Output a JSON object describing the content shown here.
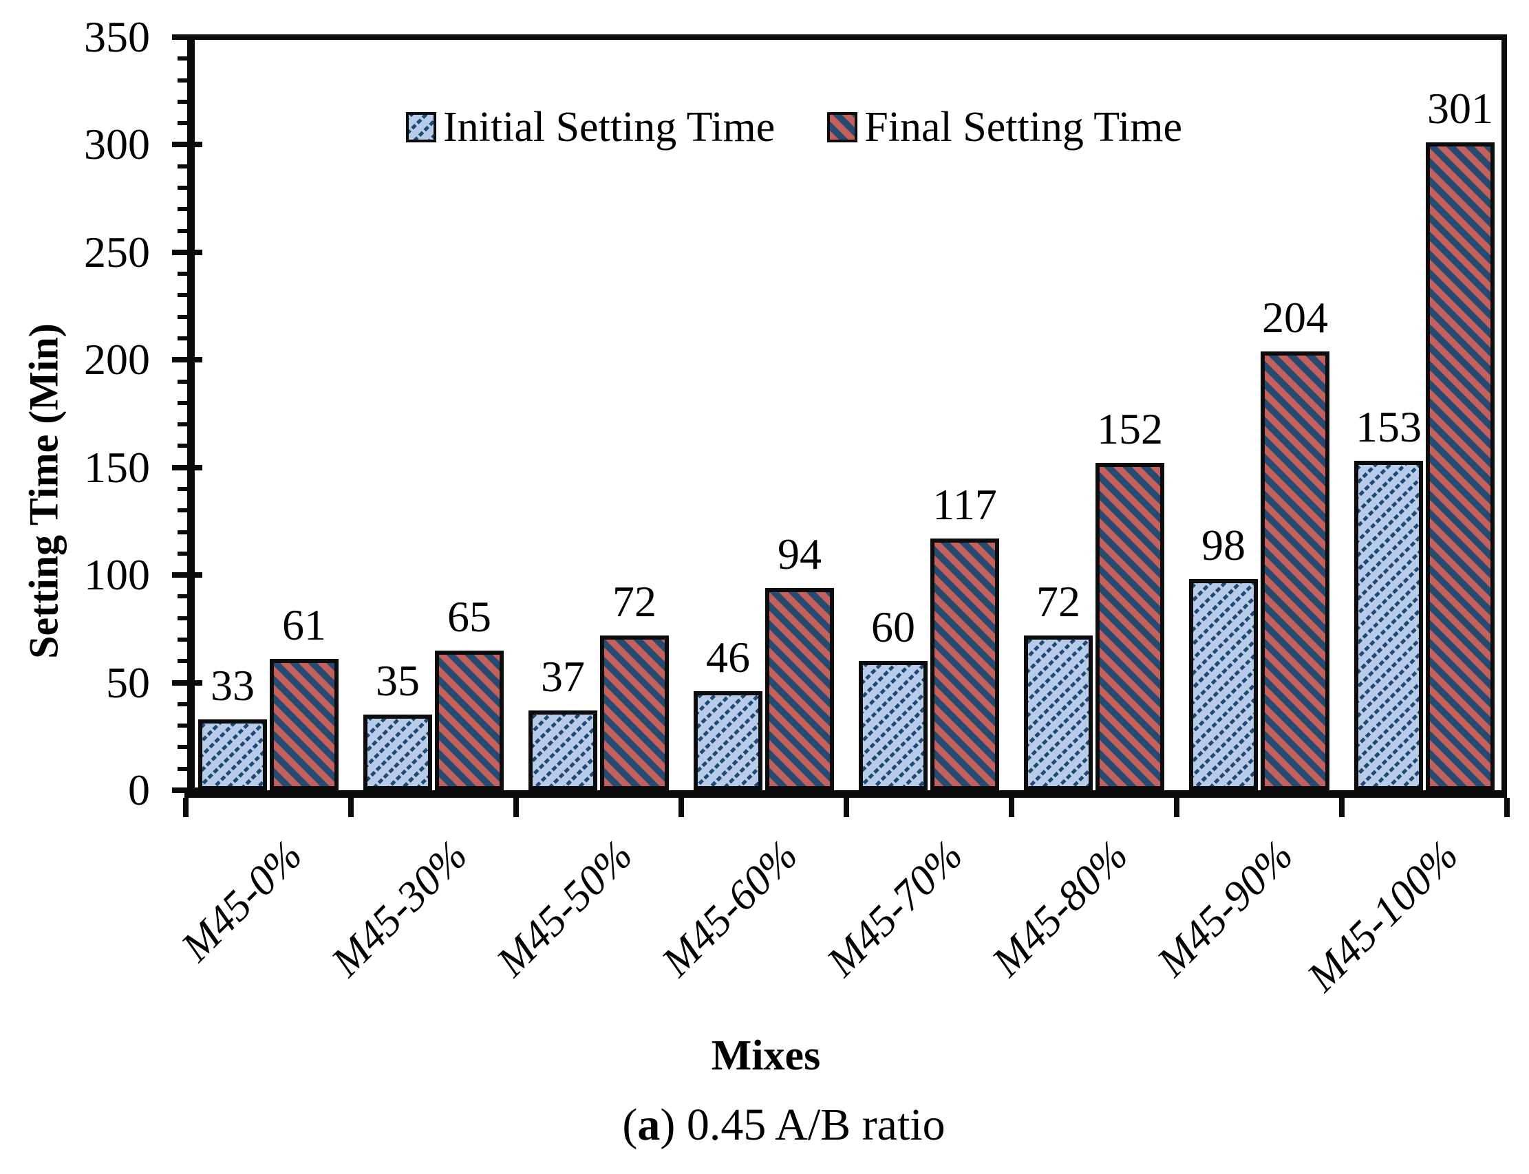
{
  "figure": {
    "y_axis_title": "Setting Time (Min)",
    "x_axis_title": "Mixes",
    "caption": {
      "prefix": "(",
      "letter": "a",
      "suffix": ") 0.45 A/B ratio"
    }
  },
  "legend": {
    "initial_label": "Initial Setting Time",
    "final_label": "Final Setting Time"
  },
  "colors": {
    "initial_fill": "#b8cbe8",
    "initial_hatch": "#1f4a73",
    "final_fill": "#264a70",
    "final_hatch": "#c4615c",
    "axis": "#0b0b0b",
    "background": "#ffffff"
  },
  "chart_data": {
    "type": "bar",
    "title": "",
    "xlabel": "Mixes",
    "ylabel": "Setting Time (Min)",
    "categories": [
      "M45-0%",
      "M45-30%",
      "M45-50%",
      "M45-60%",
      "M45-70%",
      "M45-80%",
      "M45-90%",
      "M45-100%"
    ],
    "series": [
      {
        "name": "Initial Setting Time",
        "values": [
          33,
          35,
          37,
          46,
          60,
          72,
          98,
          153
        ]
      },
      {
        "name": "Final Setting Time",
        "values": [
          61,
          65,
          72,
          94,
          117,
          152,
          204,
          301
        ]
      }
    ],
    "bar_value_labels": true,
    "ylim": [
      0,
      350
    ],
    "yticks": [
      0,
      50,
      100,
      150,
      200,
      250,
      300,
      350
    ],
    "y_minor_tick_step": 10,
    "grid": false,
    "legend_position": "top-center-inside",
    "category_label_rotation_deg": -45
  }
}
